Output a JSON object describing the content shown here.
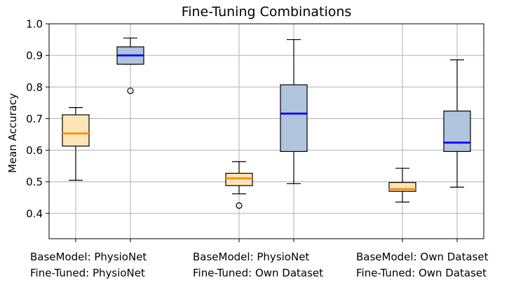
{
  "chart_data": {
    "type": "box",
    "title": "Fine-Tuning Combinations",
    "xlabel": "",
    "ylabel": "Mean Accuracy",
    "ylim": [
      0.32,
      1.0
    ],
    "yticks": [
      "0.4",
      "0.5",
      "0.6",
      "0.7",
      "0.8",
      "0.9",
      "1.0"
    ],
    "grid": true,
    "categories": [
      {
        "line1": "BaseModel: PhysioNet",
        "line2": "Fine-Tuned: PhysioNet"
      },
      {
        "line1": "BaseModel: PhysioNet",
        "line2": "Fine-Tuned: Own Dataset"
      },
      {
        "line1": "BaseModel: Own Dataset",
        "line2": "Fine-Tuned: Own Dataset"
      }
    ],
    "styles": {
      "orange": {
        "fill": "#ffe4b5",
        "median": "#ff8c00"
      },
      "blue": {
        "fill": "#b0c4de",
        "median": "#0000ff"
      }
    },
    "boxes": [
      {
        "group": 0,
        "style": "orange",
        "whisker_low": 0.505,
        "q1": 0.613,
        "median": 0.653,
        "q3": 0.712,
        "whisker_high": 0.735,
        "outliers": []
      },
      {
        "group": 0,
        "style": "blue",
        "whisker_low": 0.872,
        "q1": 0.872,
        "median": 0.9,
        "q3": 0.927,
        "whisker_high": 0.955,
        "outliers": [
          0.788
        ]
      },
      {
        "group": 1,
        "style": "orange",
        "whisker_low": 0.462,
        "q1": 0.488,
        "median": 0.511,
        "q3": 0.527,
        "whisker_high": 0.564,
        "outliers": [
          0.425
        ]
      },
      {
        "group": 1,
        "style": "blue",
        "whisker_low": 0.494,
        "q1": 0.596,
        "median": 0.716,
        "q3": 0.807,
        "whisker_high": 0.95,
        "outliers": []
      },
      {
        "group": 2,
        "style": "orange",
        "whisker_low": 0.436,
        "q1": 0.47,
        "median": 0.477,
        "q3": 0.498,
        "whisker_high": 0.543,
        "outliers": []
      },
      {
        "group": 2,
        "style": "blue",
        "whisker_low": 0.483,
        "q1": 0.596,
        "median": 0.624,
        "q3": 0.724,
        "whisker_high": 0.886,
        "outliers": []
      }
    ]
  }
}
